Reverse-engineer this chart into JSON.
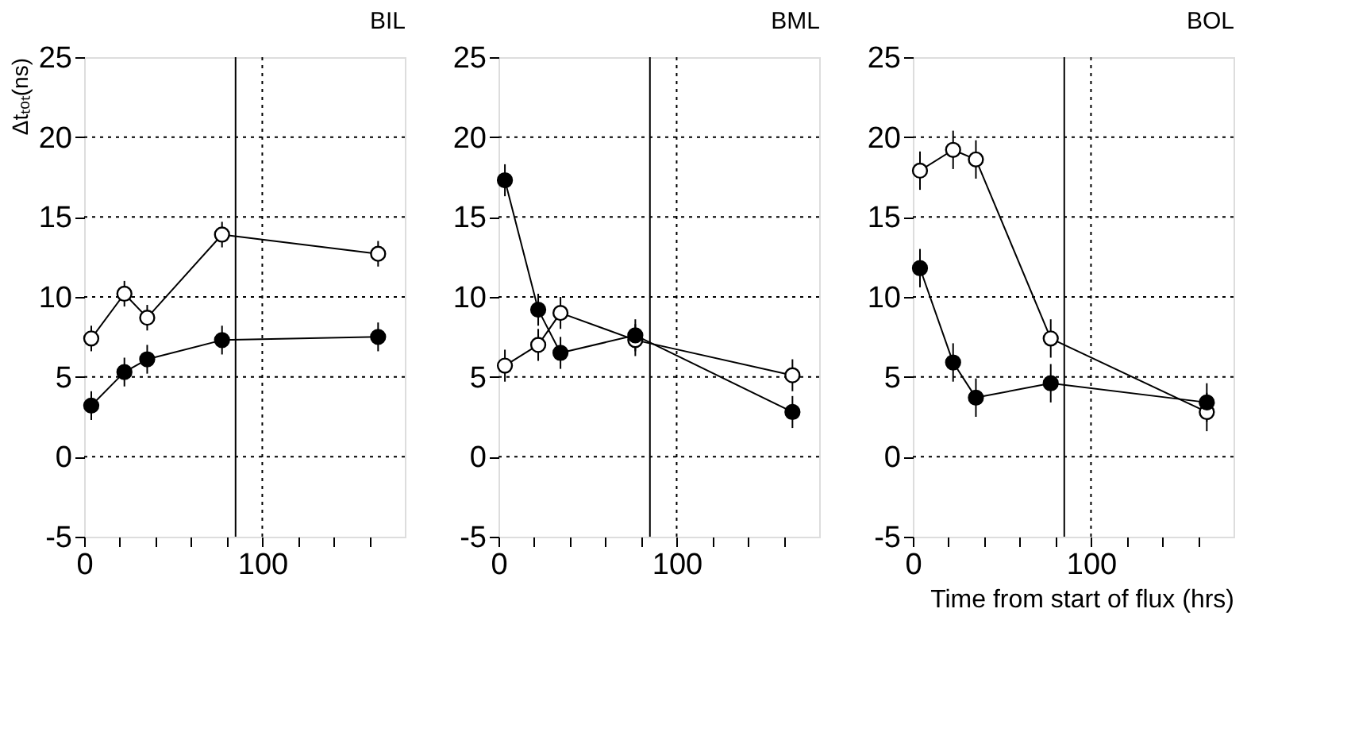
{
  "chart_data": [
    {
      "type": "line",
      "title": "BIL",
      "ylabel": "Δtₜₒₜ(ns)",
      "xlim": [
        0,
        180
      ],
      "ylim": [
        -5,
        25
      ],
      "xticks": [
        0,
        {
          "value": 20,
          "label": null
        },
        {
          "value": 40,
          "label": null
        },
        {
          "value": 60,
          "label": null
        },
        {
          "value": 80,
          "label": null
        },
        100,
        {
          "value": 120,
          "label": null
        },
        {
          "value": 140,
          "label": null
        },
        {
          "value": 160,
          "label": null
        }
      ],
      "yticks": [
        -5,
        0,
        5,
        10,
        15,
        20,
        25
      ],
      "grid": true,
      "marker": "circle",
      "ref_lines": [
        {
          "axis": "x",
          "value": 85,
          "label": null,
          "color": "#000000",
          "line_style": "solid"
        }
      ],
      "series": [
        {
          "color": "#ffffff",
          "x": [
            4,
            22.6,
            35.4,
            77.4,
            165
          ],
          "values": [
            7.4,
            10.2,
            8.7,
            13.9,
            12.7
          ],
          "errors": [
            0.8,
            0.8,
            0.8,
            0.8,
            0.8
          ]
        },
        {
          "color": "#000000",
          "x": [
            4,
            22.6,
            35.4,
            77.4,
            165
          ],
          "values": [
            3.2,
            5.3,
            6.1,
            7.3,
            7.5
          ],
          "errors": [
            0.9,
            0.9,
            0.9,
            0.9,
            0.9
          ]
        }
      ]
    },
    {
      "type": "line",
      "title": "BML",
      "xlim": [
        0,
        180
      ],
      "ylim": [
        -5,
        25
      ],
      "xticks": [
        0,
        {
          "value": 20,
          "label": null
        },
        {
          "value": 40,
          "label": null
        },
        {
          "value": 60,
          "label": null
        },
        {
          "value": 80,
          "label": null
        },
        100,
        {
          "value": 120,
          "label": null
        },
        {
          "value": 140,
          "label": null
        },
        {
          "value": 160,
          "label": null
        }
      ],
      "yticks": [
        -5,
        0,
        5,
        10,
        15,
        20,
        25
      ],
      "grid": true,
      "marker": "circle",
      "ref_lines": [
        {
          "axis": "x",
          "value": 85,
          "label": null,
          "color": "#000000",
          "line_style": "solid"
        }
      ],
      "series": [
        {
          "color": "#ffffff",
          "x": [
            3.6,
            22.3,
            34.8,
            76.8,
            165
          ],
          "values": [
            5.7,
            7.0,
            9.0,
            7.3,
            5.1
          ],
          "errors": [
            1,
            1,
            1,
            1,
            1
          ]
        },
        {
          "color": "#000000",
          "x": [
            3.6,
            22.3,
            34.8,
            76.8,
            165
          ],
          "values": [
            17.3,
            9.2,
            6.5,
            7.6,
            2.8
          ],
          "errors": [
            1,
            1,
            1,
            1,
            1
          ]
        }
      ]
    },
    {
      "type": "line",
      "title": "BOL",
      "xlabel": "Time from start of flux (hrs)",
      "xlim": [
        0,
        180
      ],
      "ylim": [
        -5,
        25
      ],
      "xticks": [
        0,
        {
          "value": 20,
          "label": null
        },
        {
          "value": 40,
          "label": null
        },
        {
          "value": 60,
          "label": null
        },
        {
          "value": 80,
          "label": null
        },
        100,
        {
          "value": 120,
          "label": null
        },
        {
          "value": 140,
          "label": null
        },
        {
          "value": 160,
          "label": null
        }
      ],
      "yticks": [
        -5,
        0,
        5,
        10,
        15,
        20,
        25
      ],
      "grid": true,
      "marker": "circle",
      "ref_lines": [
        {
          "axis": "x",
          "value": 85,
          "label": null,
          "color": "#000000",
          "line_style": "solid"
        }
      ],
      "series": [
        {
          "color": "#ffffff",
          "x": [
            4,
            22.6,
            35.4,
            77.4,
            165
          ],
          "values": [
            17.9,
            19.2,
            18.6,
            7.4,
            2.8
          ],
          "errors": [
            1.2,
            1.2,
            1.2,
            1.2,
            1.2
          ]
        },
        {
          "color": "#000000",
          "x": [
            4,
            22.6,
            35.4,
            77.4,
            165
          ],
          "values": [
            11.8,
            5.9,
            3.7,
            4.6,
            3.4
          ],
          "errors": [
            1.2,
            1.2,
            1.2,
            1.2,
            1.2
          ]
        }
      ]
    }
  ]
}
